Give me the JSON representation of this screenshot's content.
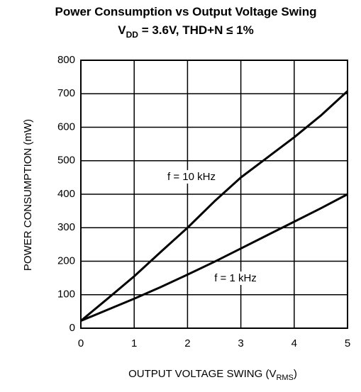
{
  "chart_data": {
    "type": "line",
    "title": "Power Consumption vs Output Voltage Swing",
    "subtitle_parts": [
      "V",
      "DD",
      " = 3.6V, THD+N ≤ 1%"
    ],
    "x_label_parts": [
      "OUTPUT VOLTAGE SWING (V",
      "RMS",
      ")"
    ],
    "y_label": "POWER CONSUMPTION (mW)",
    "x": [
      0,
      0.5,
      1,
      1.5,
      2,
      2.5,
      3,
      3.5,
      4,
      4.5,
      5
    ],
    "series": [
      {
        "name": "f = 10 kHz",
        "color": "#000000",
        "values": [
          22,
          88,
          155,
          228,
          300,
          378,
          450,
          510,
          570,
          635,
          708
        ]
      },
      {
        "name": "f = 1 kHz",
        "color": "#000000",
        "values": [
          22,
          55,
          88,
          123,
          160,
          198,
          238,
          278,
          318,
          358,
          400
        ]
      }
    ],
    "xlim": [
      0,
      5
    ],
    "xticks": [
      0,
      1,
      2,
      3,
      4,
      5
    ],
    "ylim": [
      0,
      800
    ],
    "yticks": [
      0,
      100,
      200,
      300,
      400,
      500,
      600,
      700,
      800
    ],
    "grid": true
  }
}
